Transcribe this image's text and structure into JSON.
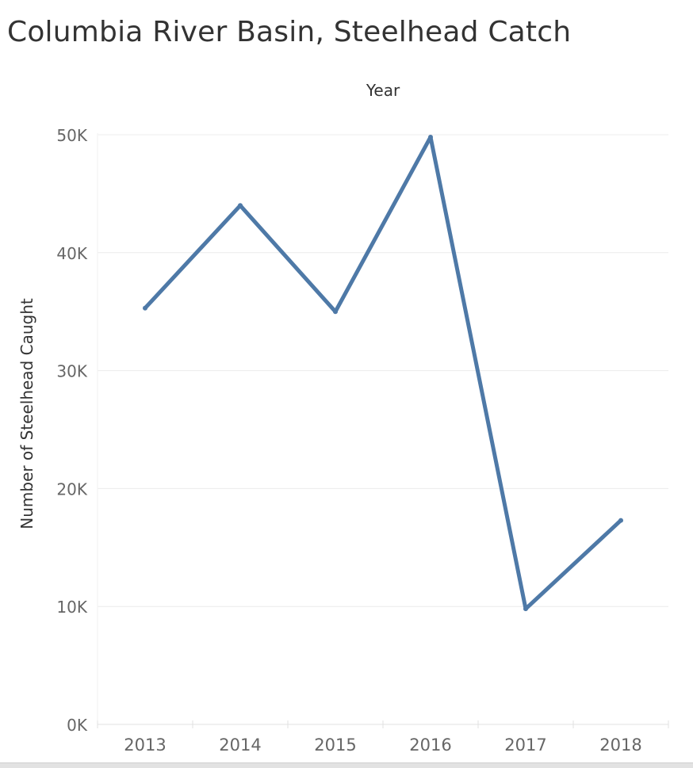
{
  "page": {
    "title": "Columbia River Basin, Steelhead Catch"
  },
  "chart_data": {
    "type": "line",
    "title": "Columbia River Basin, Steelhead Catch",
    "xlabel": "Year",
    "ylabel": "Number of Steelhead Caught",
    "categories": [
      "2013",
      "2014",
      "2015",
      "2016",
      "2017",
      "2018"
    ],
    "series": [
      {
        "values": [
          35300,
          44000,
          35000,
          49800,
          9800,
          17300
        ]
      }
    ],
    "ylim": [
      0,
      50000
    ],
    "yticks": [
      0,
      10000,
      20000,
      30000,
      40000,
      50000
    ],
    "ytick_labels": [
      "0K",
      "10K",
      "20K",
      "30K",
      "40K",
      "50K"
    ],
    "grid": true,
    "legend": "none",
    "colors": {
      "line": "#4e79a7",
      "grid": "#ececec",
      "axis": "#e2e2e2",
      "tick_text": "#666666",
      "label_text": "#333333"
    }
  }
}
